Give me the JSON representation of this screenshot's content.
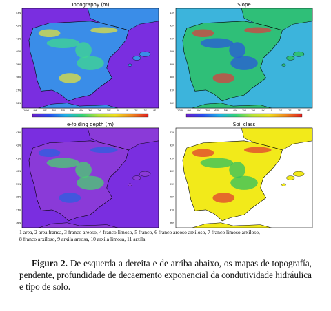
{
  "figure": {
    "panels": [
      {
        "title": "Topography (m)"
      },
      {
        "title": "Slope"
      },
      {
        "title": "e-folding depth (m)"
      },
      {
        "title": "Soil class"
      }
    ],
    "lat_labels": [
      "43N",
      "42N",
      "41N",
      "40N",
      "39N",
      "38N",
      "37N",
      "36N"
    ],
    "lon_labels": [
      "10W",
      "9W",
      "8W",
      "7W",
      "6W",
      "5W",
      "4W",
      "3W",
      "2W",
      "1W",
      "0",
      "1E",
      "2E",
      "3E",
      "4E"
    ],
    "soil_classes": [
      "1",
      "2",
      "3",
      "4",
      "5",
      "6",
      "7",
      "8",
      "9",
      "10",
      "11"
    ],
    "legend_lines": [
      "1 area, 2 area franca, 3 franco areoso, 4 franco limoso, 5 franco, 6 franco areoso arxiloso, 7 franco limoso arxiloso,",
      "8 franco arxiloso, 9 arxila areosa, 10 arxila limosa, 11 arxila"
    ]
  },
  "caption": {
    "label": "Figura 2.",
    "text": "De esquerda a dereita e de arriba abaixo, os mapas de topografía, pendente, profundidade de decaemento exponencial da condutividade hidráulica e tipo de solo."
  }
}
